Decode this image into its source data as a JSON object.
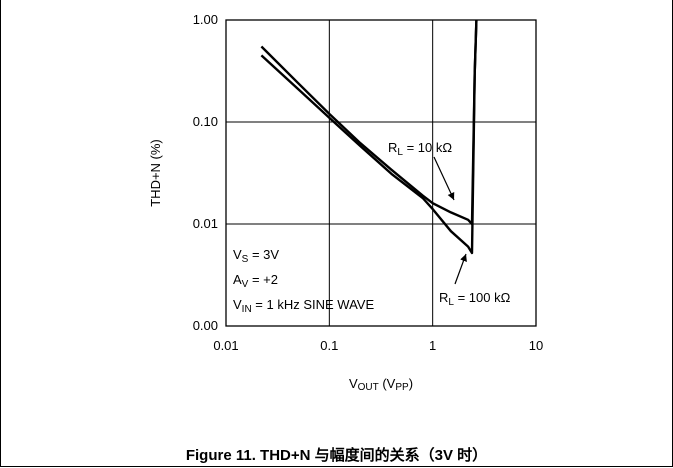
{
  "chart_data": {
    "type": "line",
    "xscale": "log",
    "yscale": "log",
    "xlim": [
      0.01,
      10
    ],
    "ylim": [
      0.001,
      1
    ],
    "x_ticks": [
      0.01,
      0.1,
      1,
      10
    ],
    "x_tick_labels": [
      "0.01",
      "0.1",
      "1",
      "10"
    ],
    "y_ticks": [
      0.001,
      0.01,
      0.1,
      1
    ],
    "y_tick_labels": [
      "0.00",
      "0.01",
      "0.10",
      "1.00"
    ],
    "grid": true,
    "ylabel": "THD+N (%)",
    "xlabel": {
      "main": "V",
      "sub1": "OUT",
      "mid": " (V",
      "sub2": "PP",
      "end": ")"
    },
    "series": [
      {
        "name": "R_L = 10 kΩ",
        "label": {
          "pre": "R",
          "sub": "L",
          "post": " = 10 kΩ"
        },
        "x": [
          0.022,
          0.05,
          0.1,
          0.2,
          0.4,
          0.8,
          1.0,
          1.5,
          2.2,
          2.4,
          2.55,
          2.65
        ],
        "y": [
          0.55,
          0.24,
          0.12,
          0.062,
          0.034,
          0.019,
          0.016,
          0.013,
          0.011,
          0.01,
          0.3,
          1.0
        ]
      },
      {
        "name": "R_L = 100 kΩ",
        "label": {
          "pre": "R",
          "sub": "L",
          "post": " = 100 kΩ"
        },
        "x": [
          0.022,
          0.05,
          0.1,
          0.2,
          0.4,
          0.8,
          1.0,
          1.5,
          2.2,
          2.4,
          2.55,
          2.65
        ],
        "y": [
          0.45,
          0.21,
          0.11,
          0.058,
          0.031,
          0.018,
          0.014,
          0.0085,
          0.006,
          0.0052,
          0.3,
          1.0
        ]
      }
    ],
    "conditions": [
      {
        "pre": "V",
        "sub": "S",
        "post": " = 3V"
      },
      {
        "pre": "A",
        "sub": "V",
        "post": " = +2"
      },
      {
        "pre": "V",
        "sub": "IN",
        "post": " = 1 kHz SINE WAVE"
      }
    ]
  },
  "caption": "Figure 11. THD+N 与幅度间的关系（3V 时）"
}
